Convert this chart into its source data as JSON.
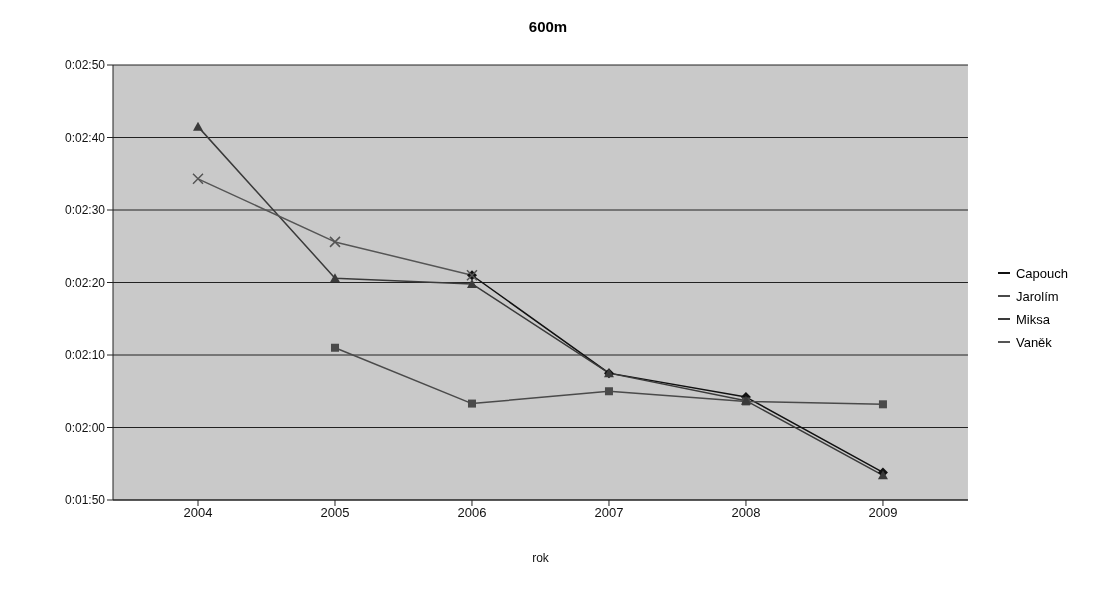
{
  "chart_data": {
    "type": "line",
    "title": "600m",
    "xlabel": "rok",
    "categories": [
      "2004",
      "2005",
      "2006",
      "2007",
      "2008",
      "2009"
    ],
    "series": [
      {
        "name": "Capouch",
        "color": "#111111",
        "marker": "diamond",
        "values": [
          null,
          null,
          141,
          127.5,
          124.2,
          113.8
        ]
      },
      {
        "name": "Jarolím",
        "color": "#4a4a4a",
        "marker": "square",
        "values": [
          null,
          131,
          123.3,
          125,
          123.6,
          123.2
        ]
      },
      {
        "name": "Miksa",
        "color": "#3a3a3a",
        "marker": "triangle",
        "values": [
          161.5,
          140.6,
          139.8,
          127.5,
          123.7,
          113.4
        ]
      },
      {
        "name": "Vaněk",
        "color": "#555555",
        "marker": "cross",
        "values": [
          154.3,
          145.6,
          141,
          null,
          null,
          null
        ]
      }
    ],
    "ylim": [
      110,
      170
    ],
    "yticks": [
      {
        "value": 110,
        "label": "0:01:50"
      },
      {
        "value": 120,
        "label": "0:02:00"
      },
      {
        "value": 130,
        "label": "0:02:10"
      },
      {
        "value": 140,
        "label": "0:02:20"
      },
      {
        "value": 150,
        "label": "0:02:30"
      },
      {
        "value": 160,
        "label": "0:02:40"
      },
      {
        "value": 170,
        "label": "0:02:50"
      }
    ],
    "grid": "y",
    "legend": "right",
    "line_style": "solid"
  }
}
